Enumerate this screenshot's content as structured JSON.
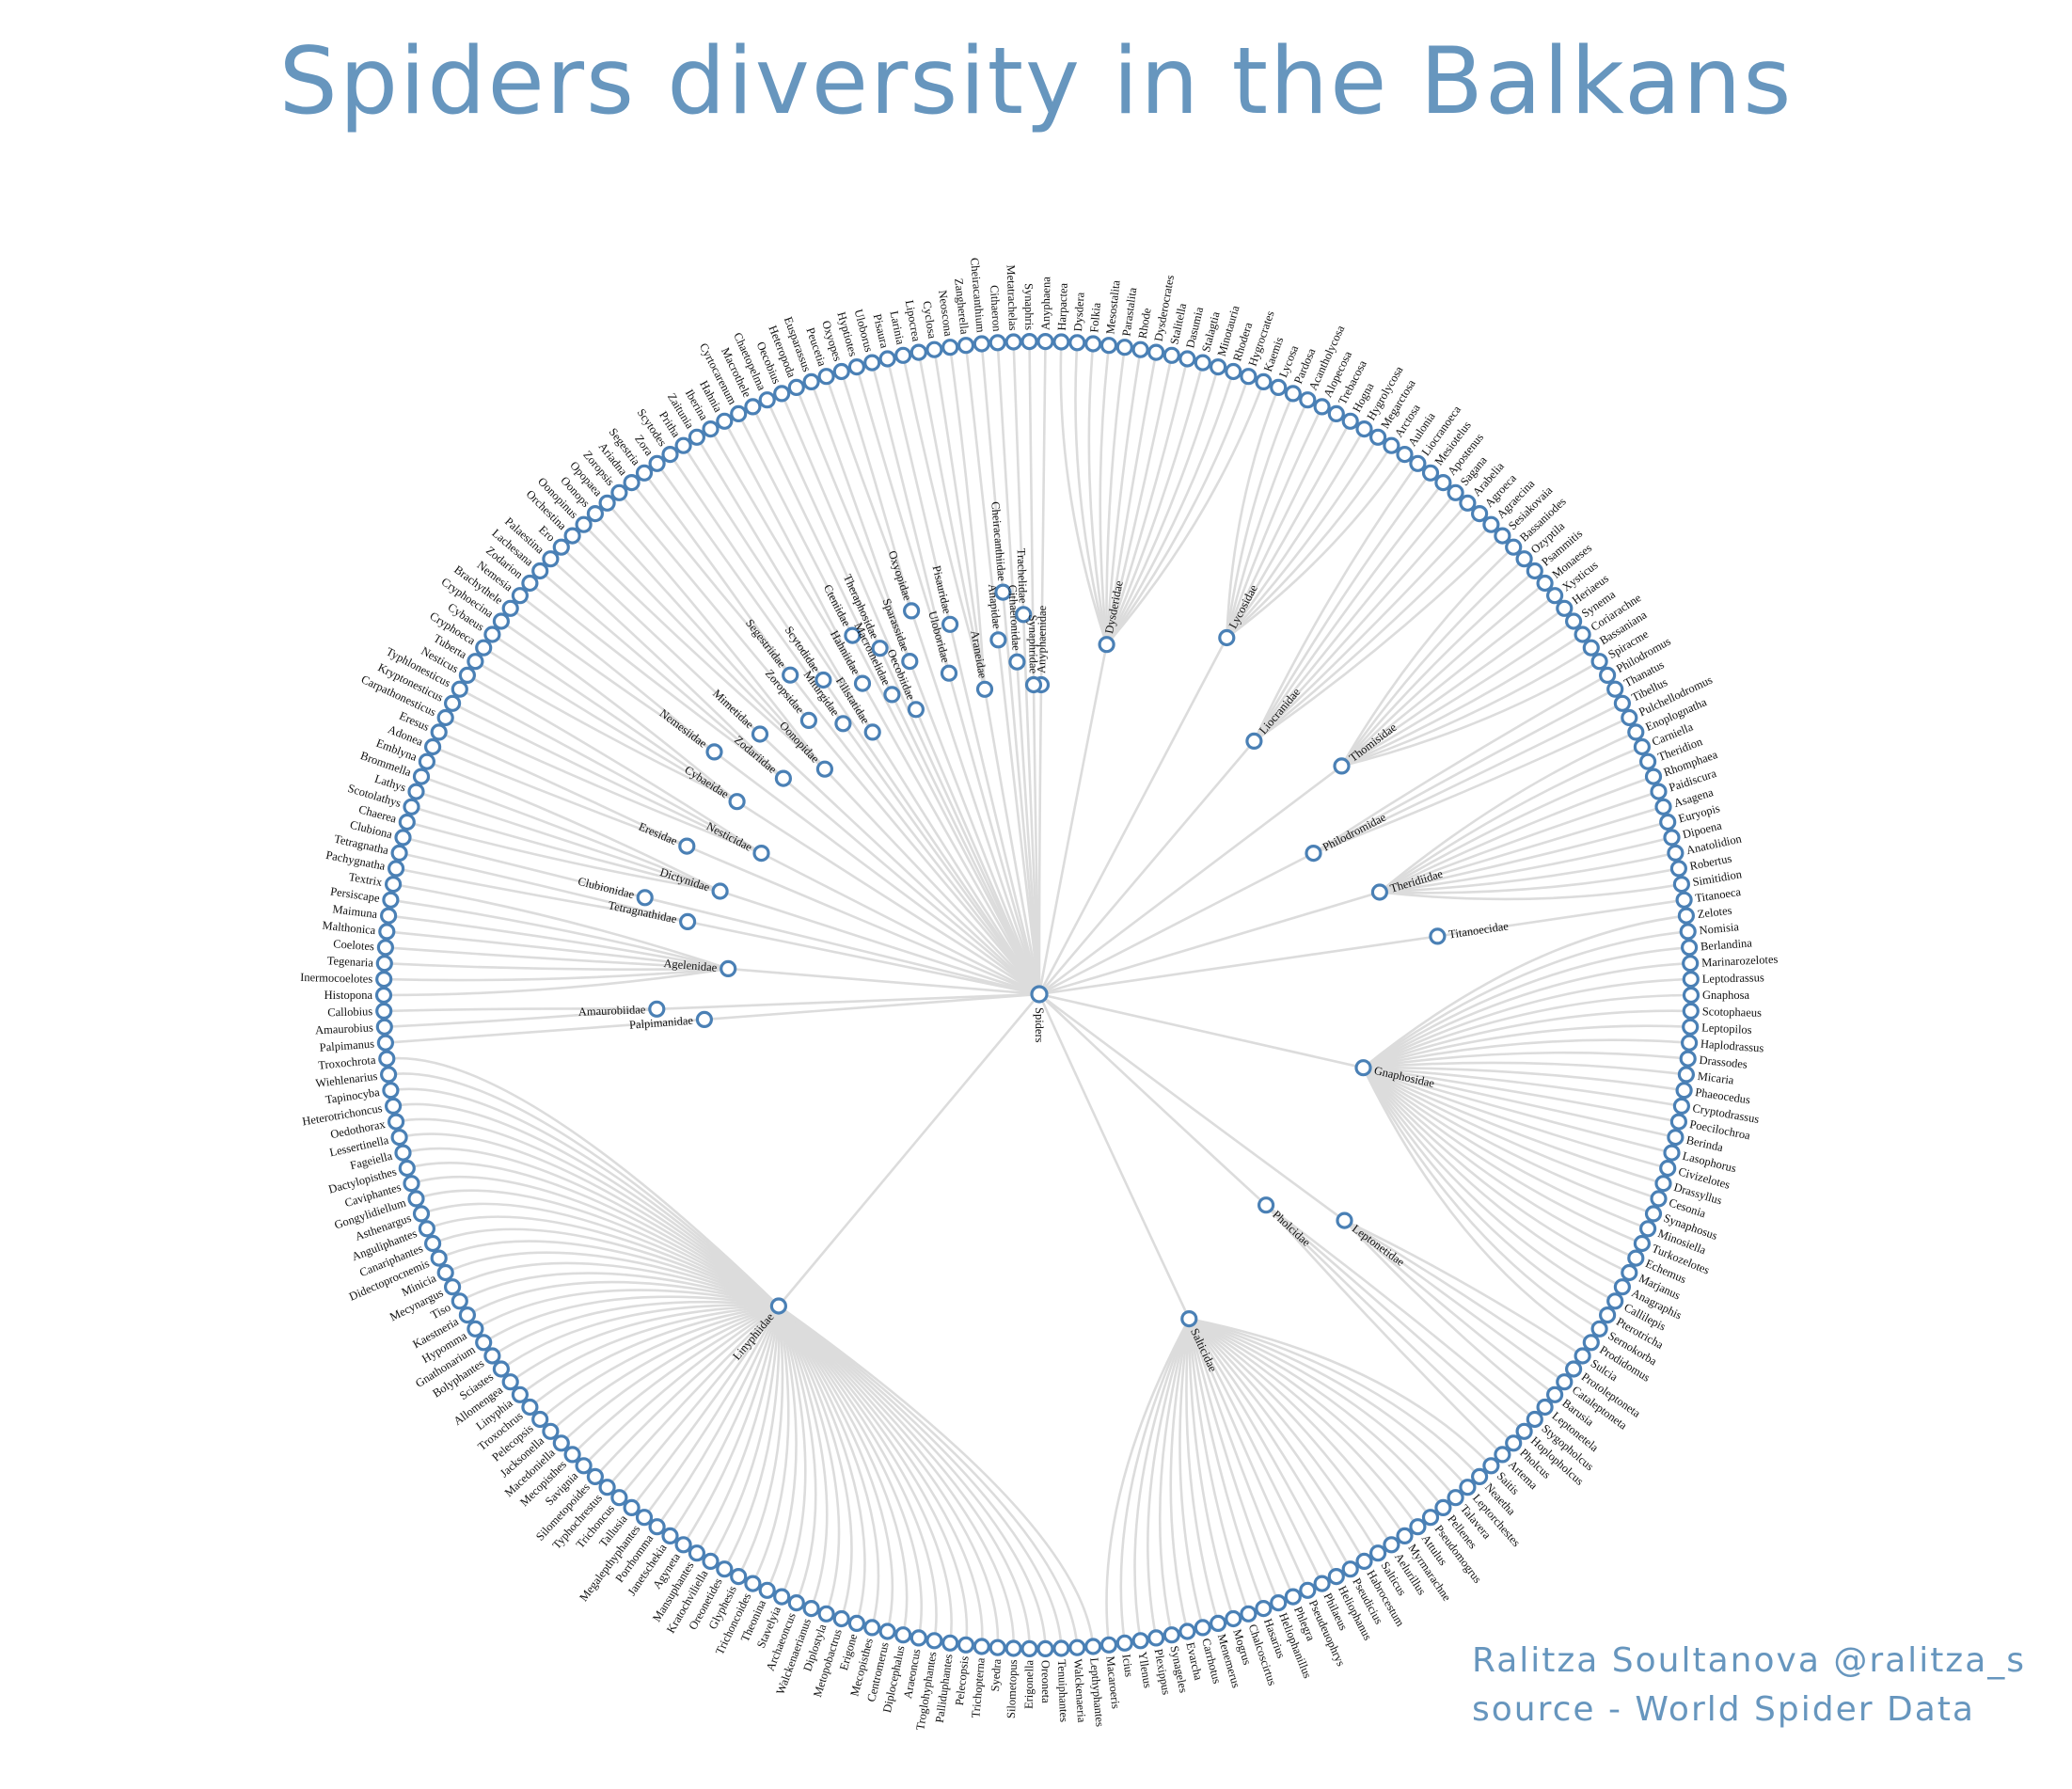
{
  "title": "Spiders diversity in the Balkans",
  "credits": {
    "author": "Ralitza Soultanova @ralitza_s",
    "source": "source - World Spider Data"
  },
  "colors": {
    "title": "#6796be",
    "node_stroke": "#4a80b5",
    "link": "#dcdcdc"
  },
  "tree": {
    "root": "Spiders",
    "families": [
      {
        "name": "Anyphaenidae",
        "genera": [
          "Anyphaena"
        ]
      },
      {
        "name": "Dysderidae",
        "genera": [
          "Harpactea",
          "Dysdera",
          "Folkia",
          "Mesostalita",
          "Parastalita",
          "Rhode",
          "Dysderocrates",
          "Stalitella",
          "Dasumia",
          "Stalagtia",
          "Minotauria",
          "Rhodera",
          "Hygrocrates",
          "Kaemis"
        ]
      },
      {
        "name": "Lycosidae",
        "genera": [
          "Lycosa",
          "Pardosa",
          "Acantholycosa",
          "Alopecosa",
          "Trebacosa",
          "Hogna",
          "Hygrolycosa",
          "Megarctosa",
          "Arctosa",
          "Aulonia"
        ]
      },
      {
        "name": "Liocranidae",
        "genera": [
          "Liocranoeca",
          "Mesiotelus",
          "Apostenus",
          "Sagana",
          "Arabelia",
          "Agroeca",
          "Agraecina",
          "Sesiakovaia"
        ]
      },
      {
        "name": "Thomisidae",
        "genera": [
          "Bassaniodes",
          "Ozyptila",
          "Psammitis",
          "Monaeses",
          "Xysticus",
          "Heriaeus",
          "Synema",
          "Coriarachne",
          "Bassaniana",
          "Spiracme"
        ]
      },
      {
        "name": "Philodromidae",
        "genera": [
          "Philodromus",
          "Thanatus",
          "Tibellus",
          "Pulchellodromus"
        ]
      },
      {
        "name": "Theridiidae",
        "genera": [
          "Enoplognatha",
          "Carniella",
          "Theridion",
          "Rhomphaea",
          "Paidiscura",
          "Asagena",
          "Euryopis",
          "Dipoena",
          "Anatolidion",
          "Robertus",
          "Simitidion"
        ]
      },
      {
        "name": "Titanoecidae",
        "genera": [
          "Titanoeca"
        ]
      },
      {
        "name": "Gnaphosidae",
        "genera": [
          "Zelotes",
          "Nomisia",
          "Berlandina",
          "Marinarozelotes",
          "Leptodrassus",
          "Gnaphosa",
          "Scotophaeus",
          "Leptopilos",
          "Haplodrassus",
          "Drassodes",
          "Micaria",
          "Phaeocedus",
          "Cryptodrassus",
          "Poecilochroa",
          "Berinda",
          "Lasophorus",
          "Civizelotes",
          "Drassyllus",
          "Cesonia",
          "Synaphosus",
          "Minosiella",
          "Turkozelotes",
          "Echemus",
          "Marjanus",
          "Anagraphis",
          "Callilepis",
          "Pterotricha",
          "Sernokorba",
          "Prodidomus"
        ]
      },
      {
        "name": "Leptonetidae",
        "genera": [
          "Sulcia",
          "Protoleptoneta",
          "Cataleptoneta",
          "Barusia",
          "Leptonetela"
        ]
      },
      {
        "name": "Pholcidae",
        "genera": [
          "Stygopholcus",
          "Hoplopholcus",
          "Pholcus",
          "Artema"
        ]
      },
      {
        "name": "Salticidae",
        "genera": [
          "Saitis",
          "Neaetha",
          "Leptorchestes",
          "Talavera",
          "Pellenes",
          "Pseudomogrus",
          "Attulus",
          "Myrmarachne",
          "Aelurillus",
          "Salticus",
          "Habrocestum",
          "Pseudicius",
          "Heliophanus",
          "Philaeus",
          "Pseudeuophrys",
          "Phlegra",
          "Heliophanillus",
          "Hasarius",
          "Chalcoscirtus",
          "Mogrus",
          "Menemerus",
          "Carrhotus",
          "Evarcha",
          "Synageles",
          "Plexippus",
          "Yllenus",
          "Icius",
          "Macaroeris"
        ]
      },
      {
        "name": "Linyphiidae",
        "genera": [
          "Lepthyphantes",
          "Walckenaeria",
          "Tenuiphantes",
          "Oreoneta",
          "Erigonella",
          "Silometopus",
          "Syedra",
          "Trichopterna",
          "Pelecopsis",
          "Palliduphantes",
          "Troglohyphantes",
          "Araeoncus",
          "Diplocephalus",
          "Centromerus",
          "Mecopisthes",
          "Erigone",
          "Metopobactrus",
          "Diplostyla",
          "Walckenaerianus",
          "Archaeoncus",
          "Stavelyia",
          "Theonina",
          "Trichoncoides",
          "Glyphesis",
          "Oreonetides",
          "Kratochviliella",
          "Mansuphantes",
          "Agyneta",
          "Janetschekia",
          "Porrhomma",
          "Megalepthyphantes",
          "Tallusia",
          "Trichoncus",
          "Typhochrestus",
          "Silometopoides",
          "Savignia",
          "Mecopisthes",
          "Macedoniella",
          "Jacksonella",
          "Pelecopsis",
          "Troxochrus",
          "Linyphia",
          "Allomengea",
          "Sciastes",
          "Bolyphantes",
          "Gnathonarium",
          "Hypomma",
          "Kaestneria",
          "Tiso",
          "Mecynargus",
          "Minicia",
          "Didectoprocnemis",
          "Canariphantes",
          "Anguliphantes",
          "Asthenargus",
          "Gongylidiellum",
          "Caviphantes",
          "Dactylopisthes",
          "Fageiella",
          "Lessertinella",
          "Oedothorax",
          "Heterotrichoncus",
          "Tapinocyba",
          "Wiehlenarius",
          "Troxochrota"
        ]
      },
      {
        "name": "Palpimanidae",
        "genera": [
          "Palpimanus"
        ]
      },
      {
        "name": "Amaurobiidae",
        "genera": [
          "Amaurobius",
          "Callobius"
        ]
      },
      {
        "name": "Agelenidae",
        "genera": [
          "Histopona",
          "Inermocoelotes",
          "Tegenaria",
          "Coelotes",
          "Malthonica",
          "Maimuna",
          "Persiscape",
          "Textrix"
        ]
      },
      {
        "name": "Tetragnathidae",
        "genera": [
          "Pachygnatha",
          "Tetragnatha"
        ]
      },
      {
        "name": "Clubionidae",
        "genera": [
          "Clubiona"
        ]
      },
      {
        "name": "Dictynidae",
        "genera": [
          "Chaerea",
          "Scotolathys",
          "Lathys",
          "Brommella",
          "Emblyna"
        ]
      },
      {
        "name": "Eresidae",
        "genera": [
          "Adonea",
          "Eresus"
        ]
      },
      {
        "name": "Nesticidae",
        "genera": [
          "Carpathonesticus",
          "Kryptonesticus",
          "Typhlonesticus",
          "Nesticus"
        ]
      },
      {
        "name": "Cybaeidae",
        "genera": [
          "Tuberta",
          "Cryphoeca",
          "Cybaeus",
          "Cryphoecina"
        ]
      },
      {
        "name": "Nemesiidae",
        "genera": [
          "Brachythele",
          "Nemesia"
        ]
      },
      {
        "name": "Zodariidae",
        "genera": [
          "Zodarion",
          "Lachesana",
          "Palaestina"
        ]
      },
      {
        "name": "Mimetidae",
        "genera": [
          "Ero"
        ]
      },
      {
        "name": "Oonopidae",
        "genera": [
          "Orchestina",
          "Oonopinus",
          "Oonops",
          "Opopaea"
        ]
      },
      {
        "name": "Zoropsidae",
        "genera": [
          "Zoropsis"
        ]
      },
      {
        "name": "Segestriidae",
        "genera": [
          "Ariadna",
          "Segestria"
        ]
      },
      {
        "name": "Miturgidae",
        "genera": [
          "Zora"
        ]
      },
      {
        "name": "Scytodidae",
        "genera": [
          "Scytodes"
        ]
      },
      {
        "name": "Filistatidae",
        "genera": [
          "Pritha",
          "Zaitunia"
        ]
      },
      {
        "name": "Hahniidae",
        "genera": [
          "Iberina",
          "Hahnia"
        ]
      },
      {
        "name": "Cteniidae",
        "genera": [
          "Cyrtocarenum"
        ]
      },
      {
        "name": "Macrothelidae",
        "genera": [
          "Macrothele"
        ]
      },
      {
        "name": "Theraphosidae",
        "genera": [
          "Chaetopelma"
        ]
      },
      {
        "name": "Oecobiidae",
        "genera": [
          "Oecobius"
        ]
      },
      {
        "name": "Sparassidae",
        "genera": [
          "Heteropoda",
          "Eusparassus"
        ]
      },
      {
        "name": "Oxyopidae",
        "genera": [
          "Peucetia",
          "Oxyopes"
        ]
      },
      {
        "name": "Uloboridae",
        "genera": [
          "Hyptiotes",
          "Uloborus"
        ]
      },
      {
        "name": "Pisauridae",
        "genera": [
          "Pisaura"
        ]
      },
      {
        "name": "Araneidae",
        "genera": [
          "Larinia",
          "Lipocrea",
          "Cyclosa",
          "Neoscona"
        ]
      },
      {
        "name": "Anapidae",
        "genera": [
          "Zangherella"
        ]
      },
      {
        "name": "Cheiracanthiidae",
        "genera": [
          "Cheiracanthium"
        ]
      },
      {
        "name": "Cithaeronidae",
        "genera": [
          "Cithaeron"
        ]
      },
      {
        "name": "Trachelidae",
        "genera": [
          "Metatrachelas"
        ]
      },
      {
        "name": "Synaphridae",
        "genera": [
          "Synaphris"
        ]
      }
    ]
  }
}
